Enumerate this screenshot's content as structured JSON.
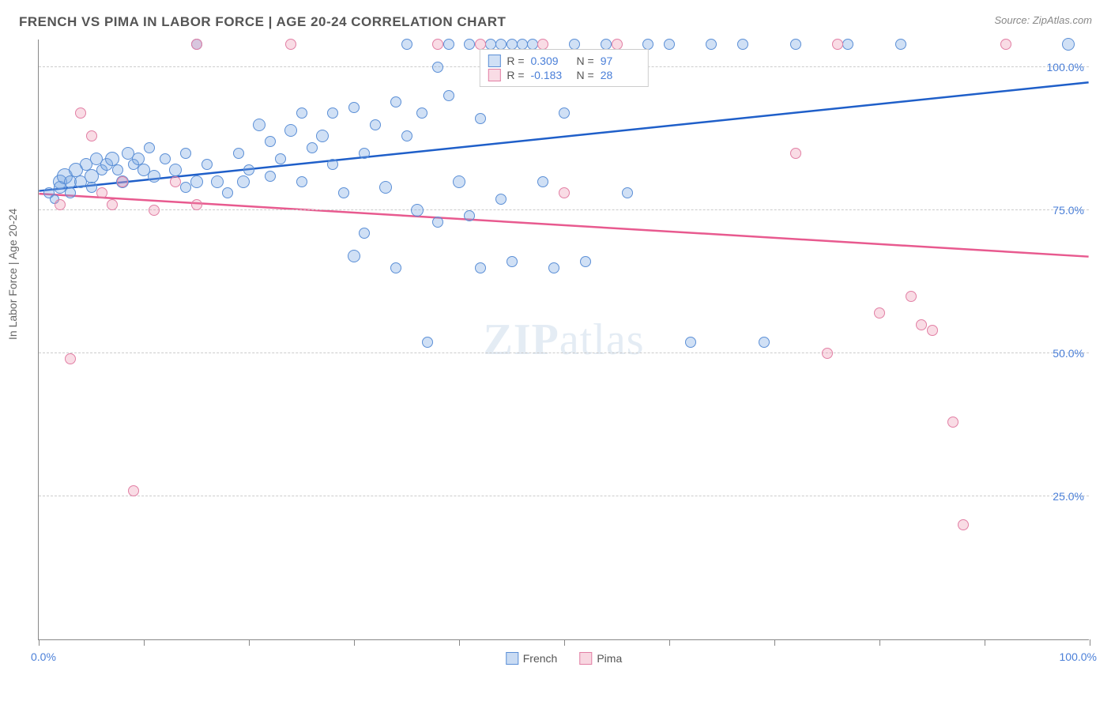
{
  "header": {
    "title": "FRENCH VS PIMA IN LABOR FORCE | AGE 20-24 CORRELATION CHART",
    "source": "Source: ZipAtlas.com"
  },
  "chart": {
    "type": "scatter",
    "ylabel": "In Labor Force | Age 20-24",
    "xlim": [
      0,
      100
    ],
    "ylim": [
      0,
      105
    ],
    "x_min_label": "0.0%",
    "x_max_label": "100.0%",
    "y_ticks": [
      25,
      50,
      75,
      100
    ],
    "y_tick_labels": [
      "25.0%",
      "50.0%",
      "75.0%",
      "100.0%"
    ],
    "x_tick_positions": [
      0,
      10,
      20,
      30,
      40,
      50,
      60,
      70,
      80,
      90,
      100
    ],
    "grid_color": "#cccccc",
    "axis_color": "#888888",
    "background_color": "#ffffff",
    "label_color": "#4a7fd8",
    "text_color": "#666666",
    "watermark": "ZIPatlas",
    "series": [
      {
        "name": "French",
        "color_fill": "rgba(120,165,225,0.35)",
        "color_stroke": "#5b8fd6",
        "trend_color": "#1f5fc9",
        "R": "0.309",
        "N": "97",
        "trend_y_at_x0": 78.5,
        "trend_y_at_x100": 97.5,
        "points": [
          {
            "x": 1,
            "y": 78,
            "r": 7
          },
          {
            "x": 1.5,
            "y": 77,
            "r": 6
          },
          {
            "x": 2,
            "y": 80,
            "r": 9
          },
          {
            "x": 2,
            "y": 79,
            "r": 8
          },
          {
            "x": 2.5,
            "y": 81,
            "r": 10
          },
          {
            "x": 3,
            "y": 80,
            "r": 8
          },
          {
            "x": 3,
            "y": 78,
            "r": 7
          },
          {
            "x": 3.5,
            "y": 82,
            "r": 9
          },
          {
            "x": 4,
            "y": 80,
            "r": 8
          },
          {
            "x": 4.5,
            "y": 83,
            "r": 8
          },
          {
            "x": 5,
            "y": 81,
            "r": 9
          },
          {
            "x": 5,
            "y": 79,
            "r": 7
          },
          {
            "x": 5.5,
            "y": 84,
            "r": 8
          },
          {
            "x": 6,
            "y": 82,
            "r": 7
          },
          {
            "x": 6.5,
            "y": 83,
            "r": 8
          },
          {
            "x": 7,
            "y": 84,
            "r": 9
          },
          {
            "x": 7.5,
            "y": 82,
            "r": 7
          },
          {
            "x": 8,
            "y": 80,
            "r": 8
          },
          {
            "x": 8.5,
            "y": 85,
            "r": 8
          },
          {
            "x": 9,
            "y": 83,
            "r": 7
          },
          {
            "x": 9.5,
            "y": 84,
            "r": 8
          },
          {
            "x": 10,
            "y": 82,
            "r": 8
          },
          {
            "x": 10.5,
            "y": 86,
            "r": 7
          },
          {
            "x": 11,
            "y": 81,
            "r": 8
          },
          {
            "x": 12,
            "y": 84,
            "r": 7
          },
          {
            "x": 13,
            "y": 82,
            "r": 8
          },
          {
            "x": 14,
            "y": 79,
            "r": 7
          },
          {
            "x": 14,
            "y": 85,
            "r": 7
          },
          {
            "x": 15,
            "y": 80,
            "r": 8
          },
          {
            "x": 15,
            "y": 104,
            "r": 7
          },
          {
            "x": 16,
            "y": 83,
            "r": 7
          },
          {
            "x": 17,
            "y": 80,
            "r": 8
          },
          {
            "x": 18,
            "y": 78,
            "r": 7
          },
          {
            "x": 19,
            "y": 85,
            "r": 7
          },
          {
            "x": 19.5,
            "y": 80,
            "r": 8
          },
          {
            "x": 20,
            "y": 82,
            "r": 7
          },
          {
            "x": 21,
            "y": 90,
            "r": 8
          },
          {
            "x": 22,
            "y": 81,
            "r": 7
          },
          {
            "x": 22,
            "y": 87,
            "r": 7
          },
          {
            "x": 23,
            "y": 84,
            "r": 7
          },
          {
            "x": 24,
            "y": 89,
            "r": 8
          },
          {
            "x": 25,
            "y": 80,
            "r": 7
          },
          {
            "x": 25,
            "y": 92,
            "r": 7
          },
          {
            "x": 26,
            "y": 86,
            "r": 7
          },
          {
            "x": 27,
            "y": 88,
            "r": 8
          },
          {
            "x": 28,
            "y": 83,
            "r": 7
          },
          {
            "x": 28,
            "y": 92,
            "r": 7
          },
          {
            "x": 29,
            "y": 78,
            "r": 7
          },
          {
            "x": 30,
            "y": 67,
            "r": 8
          },
          {
            "x": 30,
            "y": 93,
            "r": 7
          },
          {
            "x": 31,
            "y": 85,
            "r": 7
          },
          {
            "x": 31,
            "y": 71,
            "r": 7
          },
          {
            "x": 32,
            "y": 90,
            "r": 7
          },
          {
            "x": 33,
            "y": 79,
            "r": 8
          },
          {
            "x": 34,
            "y": 94,
            "r": 7
          },
          {
            "x": 34,
            "y": 65,
            "r": 7
          },
          {
            "x": 35,
            "y": 88,
            "r": 7
          },
          {
            "x": 35,
            "y": 104,
            "r": 7
          },
          {
            "x": 36,
            "y": 75,
            "r": 8
          },
          {
            "x": 36.5,
            "y": 92,
            "r": 7
          },
          {
            "x": 37,
            "y": 52,
            "r": 7
          },
          {
            "x": 38,
            "y": 100,
            "r": 7
          },
          {
            "x": 38,
            "y": 73,
            "r": 7
          },
          {
            "x": 39,
            "y": 95,
            "r": 7
          },
          {
            "x": 39,
            "y": 104,
            "r": 7
          },
          {
            "x": 40,
            "y": 80,
            "r": 8
          },
          {
            "x": 41,
            "y": 104,
            "r": 7
          },
          {
            "x": 41,
            "y": 74,
            "r": 7
          },
          {
            "x": 42,
            "y": 91,
            "r": 7
          },
          {
            "x": 42,
            "y": 65,
            "r": 7
          },
          {
            "x": 43,
            "y": 104,
            "r": 7
          },
          {
            "x": 44,
            "y": 77,
            "r": 7
          },
          {
            "x": 44,
            "y": 104,
            "r": 7
          },
          {
            "x": 45,
            "y": 104,
            "r": 7
          },
          {
            "x": 45,
            "y": 66,
            "r": 7
          },
          {
            "x": 46,
            "y": 104,
            "r": 7
          },
          {
            "x": 47,
            "y": 104,
            "r": 7
          },
          {
            "x": 48,
            "y": 80,
            "r": 7
          },
          {
            "x": 49,
            "y": 65,
            "r": 7
          },
          {
            "x": 50,
            "y": 92,
            "r": 7
          },
          {
            "x": 51,
            "y": 104,
            "r": 7
          },
          {
            "x": 52,
            "y": 66,
            "r": 7
          },
          {
            "x": 54,
            "y": 104,
            "r": 7
          },
          {
            "x": 56,
            "y": 78,
            "r": 7
          },
          {
            "x": 58,
            "y": 104,
            "r": 7
          },
          {
            "x": 60,
            "y": 104,
            "r": 7
          },
          {
            "x": 62,
            "y": 52,
            "r": 7
          },
          {
            "x": 64,
            "y": 104,
            "r": 7
          },
          {
            "x": 67,
            "y": 104,
            "r": 7
          },
          {
            "x": 69,
            "y": 52,
            "r": 7
          },
          {
            "x": 72,
            "y": 104,
            "r": 7
          },
          {
            "x": 77,
            "y": 104,
            "r": 7
          },
          {
            "x": 82,
            "y": 104,
            "r": 7
          },
          {
            "x": 98,
            "y": 104,
            "r": 8
          }
        ]
      },
      {
        "name": "Pima",
        "color_fill": "rgba(235,140,170,0.3)",
        "color_stroke": "#e27fa4",
        "trend_color": "#e85a8f",
        "R": "-0.183",
        "N": "28",
        "trend_y_at_x0": 78,
        "trend_y_at_x100": 67,
        "points": [
          {
            "x": 2,
            "y": 76,
            "r": 7
          },
          {
            "x": 3,
            "y": 49,
            "r": 7
          },
          {
            "x": 4,
            "y": 92,
            "r": 7
          },
          {
            "x": 5,
            "y": 88,
            "r": 7
          },
          {
            "x": 6,
            "y": 78,
            "r": 7
          },
          {
            "x": 7,
            "y": 76,
            "r": 7
          },
          {
            "x": 8,
            "y": 80,
            "r": 7
          },
          {
            "x": 9,
            "y": 26,
            "r": 7
          },
          {
            "x": 11,
            "y": 75,
            "r": 7
          },
          {
            "x": 13,
            "y": 80,
            "r": 7
          },
          {
            "x": 15,
            "y": 76,
            "r": 7
          },
          {
            "x": 15,
            "y": 104,
            "r": 7
          },
          {
            "x": 24,
            "y": 104,
            "r": 7
          },
          {
            "x": 38,
            "y": 104,
            "r": 7
          },
          {
            "x": 42,
            "y": 104,
            "r": 7
          },
          {
            "x": 48,
            "y": 104,
            "r": 7
          },
          {
            "x": 50,
            "y": 78,
            "r": 7
          },
          {
            "x": 55,
            "y": 104,
            "r": 7
          },
          {
            "x": 72,
            "y": 85,
            "r": 7
          },
          {
            "x": 75,
            "y": 50,
            "r": 7
          },
          {
            "x": 76,
            "y": 104,
            "r": 7
          },
          {
            "x": 80,
            "y": 57,
            "r": 7
          },
          {
            "x": 83,
            "y": 60,
            "r": 7
          },
          {
            "x": 84,
            "y": 55,
            "r": 7
          },
          {
            "x": 85,
            "y": 54,
            "r": 7
          },
          {
            "x": 87,
            "y": 38,
            "r": 7
          },
          {
            "x": 88,
            "y": 20,
            "r": 7
          },
          {
            "x": 92,
            "y": 104,
            "r": 7
          }
        ]
      }
    ],
    "legend_bottom": [
      {
        "label": "French",
        "fill": "rgba(120,165,225,0.4)",
        "stroke": "#5b8fd6"
      },
      {
        "label": "Pima",
        "fill": "rgba(235,140,170,0.35)",
        "stroke": "#e27fa4"
      }
    ],
    "legend_top_labels": {
      "R": "R =",
      "N": "N ="
    }
  }
}
